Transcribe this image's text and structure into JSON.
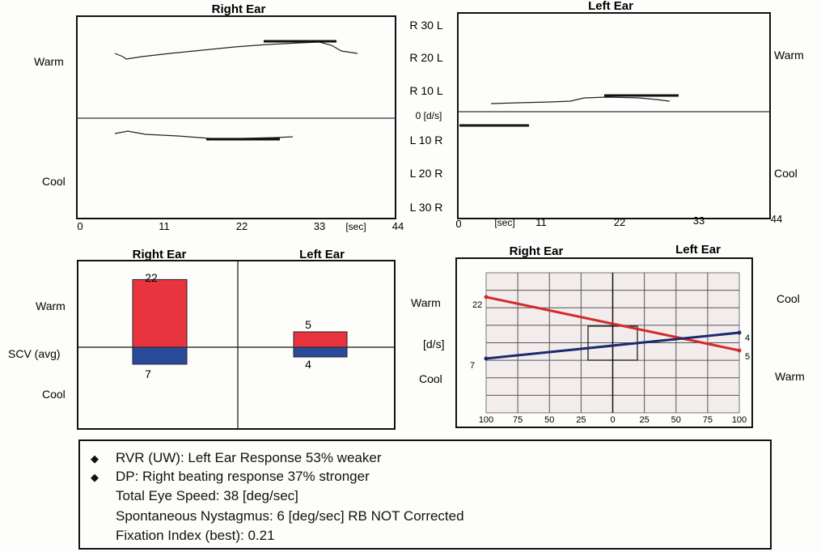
{
  "caloric": {
    "right_ear_title": "Right Ear",
    "left_ear_title": "Left Ear",
    "warm_label": "Warm",
    "cool_label": "Cool",
    "center_scale": [
      "R 30 L",
      "R 20 L",
      "R 10 L",
      "0 [d/s]",
      "L 10 R",
      "L 20 R",
      "L 30 R"
    ],
    "x_ticks_right": [
      "0",
      "11",
      "22",
      "33",
      "[sec]",
      "44"
    ],
    "x_ticks_left": [
      "0",
      "[sec]",
      "11",
      "22",
      "33",
      "44"
    ]
  },
  "bars": {
    "right_ear_title": "Right Ear",
    "left_ear_title": "Left Ear",
    "warm_label": "Warm",
    "scv_label": "SCV (avg)",
    "cool_label": "Cool",
    "right_warm_label": "22",
    "right_cool_label": "7",
    "left_warm_label": "5",
    "left_cool_label": "4"
  },
  "butterfly": {
    "right_ear_title": "Right Ear",
    "left_ear_title": "Left Ear",
    "left_warm": "Warm",
    "left_unit": "[d/s]",
    "left_cool": "Cool",
    "right_cool": "Cool",
    "right_warm": "Warm",
    "red_start_label": "22",
    "red_end_label": "5",
    "blue_start_label": "7",
    "blue_end_label": "4",
    "x_ticks": [
      "100",
      "75",
      "50",
      "25",
      "0",
      "25",
      "50",
      "75",
      "100"
    ]
  },
  "summary": {
    "line1": "RVR (UW): Left Ear Response 53% weaker",
    "line2": "DP: Right beating response 37% stronger",
    "line3": "Total Eye Speed: 38 [deg/sec]",
    "line4": "Spontaneous Nystagmus:  6 [deg/sec] RB  NOT Corrected",
    "line5": "Fixation Index (best): 0.21"
  },
  "colors": {
    "warm": "#e8343e",
    "cool": "#2a4b9a",
    "red_line": "#d42a2a",
    "blue_line": "#1c2a6e",
    "grid_bg": "#f3ecec"
  },
  "chart_data": [
    {
      "type": "bar",
      "categories": [
        "Right Ear",
        "Left Ear"
      ],
      "series": [
        {
          "name": "Warm",
          "values": [
            22,
            5
          ]
        },
        {
          "name": "Cool",
          "values": [
            7,
            4
          ]
        }
      ],
      "ylabel": "SCV (avg)"
    },
    {
      "type": "line",
      "x": [
        100,
        100
      ],
      "series": [
        {
          "values": [
            22,
            5
          ]
        },
        {
          "values": [
            7,
            4
          ]
        }
      ],
      "xlabel": "",
      "ylabel": "[d/s]"
    }
  ]
}
